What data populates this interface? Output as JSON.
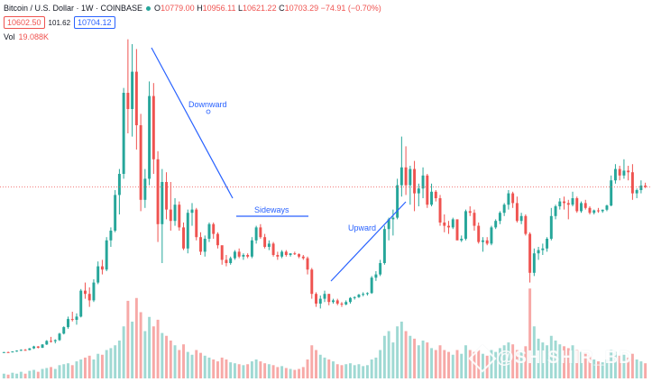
{
  "header": {
    "symbol": "Bitcoin / U.S. Dollar · 1W · COINBASE",
    "o_label": "O",
    "o_value": "10779.00",
    "h_label": "H",
    "h_value": "10956.11",
    "l_label": "L",
    "l_value": "10621.22",
    "c_label": "C",
    "c_value": "10703.29",
    "change": "−74.91 (−0.70%)"
  },
  "prices": {
    "sell": "10602.50",
    "spread": "101.62",
    "buy": "10704.12"
  },
  "volume": {
    "label": "Vol",
    "value": "19.088K"
  },
  "watermark": {
    "text": "@SHISHIR_BD"
  },
  "colors": {
    "up": "#26a69a",
    "down": "#ef5350",
    "up_vol": "#9fd9d3",
    "down_vol": "#f7a9a7",
    "annotation": "#2962ff",
    "price_line": "#ef5350"
  },
  "chart_data": {
    "type": "candlestick",
    "interval": "1W",
    "annotations": [
      "Downward",
      "Sideways",
      "Upward"
    ],
    "current_price": 10703.29,
    "series": [
      {
        "name": "price",
        "values": [
          [
            500,
            520,
            470,
            510
          ],
          [
            510,
            540,
            480,
            500
          ],
          [
            500,
            560,
            490,
            550
          ],
          [
            550,
            620,
            530,
            600
          ],
          [
            600,
            680,
            580,
            650
          ],
          [
            650,
            700,
            600,
            640
          ],
          [
            640,
            760,
            620,
            740
          ],
          [
            740,
            900,
            700,
            860
          ],
          [
            860,
            880,
            740,
            780
          ],
          [
            780,
            1000,
            760,
            980
          ],
          [
            980,
            1250,
            950,
            1200
          ],
          [
            1200,
            1450,
            1100,
            1180
          ],
          [
            1180,
            1300,
            1050,
            1250
          ],
          [
            1250,
            1700,
            1200,
            1650
          ],
          [
            1650,
            2100,
            1600,
            2050
          ],
          [
            2050,
            2700,
            1950,
            2550
          ],
          [
            2550,
            3000,
            2400,
            2500
          ],
          [
            2500,
            2900,
            2200,
            2700
          ],
          [
            2700,
            4400,
            2650,
            4300
          ],
          [
            4300,
            4800,
            3800,
            4100
          ],
          [
            4100,
            4500,
            3300,
            3700
          ],
          [
            3700,
            5000,
            3600,
            4800
          ],
          [
            4800,
            6100,
            4700,
            5800
          ],
          [
            5800,
            6200,
            5300,
            5600
          ],
          [
            5600,
            7600,
            5500,
            7400
          ],
          [
            7400,
            8200,
            7000,
            8000
          ],
          [
            8000,
            10500,
            7900,
            10200
          ],
          [
            10200,
            11800,
            9000,
            11500
          ],
          [
            11500,
            16800,
            11200,
            16500
          ],
          [
            16500,
            19800,
            14000,
            15500
          ],
          [
            15500,
            19500,
            13800,
            17800
          ],
          [
            17800,
            19200,
            13000,
            14500
          ],
          [
            14500,
            15200,
            9200,
            9900
          ],
          [
            9900,
            11800,
            9400,
            11200
          ],
          [
            11200,
            17200,
            10800,
            16300
          ],
          [
            16300,
            17100,
            11500,
            12400
          ],
          [
            12400,
            12900,
            7300,
            8400
          ],
          [
            8400,
            11800,
            6000,
            11000
          ],
          [
            11000,
            11600,
            8700,
            9300
          ],
          [
            9300,
            11000,
            8000,
            8600
          ],
          [
            8600,
            10000,
            8300,
            9600
          ],
          [
            9600,
            9800,
            8000,
            8200
          ],
          [
            8200,
            8500,
            6800,
            6900
          ],
          [
            6900,
            9300,
            6600,
            9100
          ],
          [
            9100,
            9700,
            8300,
            9300
          ],
          [
            9300,
            9400,
            7400,
            7600
          ],
          [
            7600,
            7900,
            6500,
            6700
          ],
          [
            6700,
            7700,
            6400,
            7500
          ],
          [
            7500,
            8500,
            7300,
            8400
          ],
          [
            8400,
            8500,
            7500,
            7800
          ],
          [
            7800,
            7900,
            6900,
            7100
          ],
          [
            7100,
            6900,
            5900,
            6200
          ],
          [
            6200,
            6500,
            5800,
            6000
          ],
          [
            6000,
            6400,
            5900,
            6300
          ],
          [
            6300,
            6800,
            6200,
            6700
          ],
          [
            6700,
            6900,
            6300,
            6400
          ],
          [
            6400,
            6600,
            6200,
            6500
          ],
          [
            6500,
            6600,
            6300,
            6400
          ],
          [
            6400,
            7600,
            6300,
            7400
          ],
          [
            7400,
            8300,
            7200,
            8200
          ],
          [
            8200,
            8400,
            7500,
            7600
          ],
          [
            7600,
            7800,
            6900,
            7000
          ],
          [
            7000,
            7400,
            6800,
            7200
          ],
          [
            7200,
            7300,
            6400,
            6500
          ],
          [
            6500,
            6700,
            6200,
            6400
          ],
          [
            6400,
            6800,
            6300,
            6700
          ],
          [
            6700,
            6800,
            6400,
            6500
          ],
          [
            6500,
            6600,
            6400,
            6600
          ],
          [
            6600,
            6700,
            6500,
            6550
          ],
          [
            6550,
            6600,
            6300,
            6400
          ],
          [
            6400,
            6500,
            6200,
            6300
          ],
          [
            6300,
            6400,
            5300,
            5600
          ],
          [
            5600,
            5700,
            3800,
            4100
          ],
          [
            4100,
            4200,
            3300,
            3500
          ],
          [
            3500,
            4000,
            3200,
            3800
          ],
          [
            3800,
            4300,
            3600,
            4100
          ],
          [
            4100,
            4100,
            3400,
            3600
          ],
          [
            3600,
            3800,
            3500,
            3700
          ],
          [
            3700,
            3800,
            3400,
            3500
          ],
          [
            3500,
            3600,
            3300,
            3450
          ],
          [
            3450,
            3700,
            3400,
            3600
          ],
          [
            3600,
            3900,
            3500,
            3850
          ],
          [
            3850,
            3950,
            3750,
            3900
          ],
          [
            3900,
            4100,
            3850,
            4050
          ],
          [
            4050,
            4200,
            3950,
            4100
          ],
          [
            4100,
            4200,
            4000,
            4150
          ],
          [
            4150,
            5200,
            4100,
            5100
          ],
          [
            5100,
            5500,
            4900,
            5300
          ],
          [
            5300,
            6200,
            5200,
            6000
          ],
          [
            6000,
            8300,
            5900,
            8100
          ],
          [
            8100,
            8800,
            7400,
            8700
          ],
          [
            8700,
            9300,
            7700,
            8800
          ],
          [
            8800,
            11200,
            8700,
            10800
          ],
          [
            10800,
            13800,
            10100,
            11900
          ],
          [
            11900,
            13200,
            10200,
            10800
          ],
          [
            10800,
            12000,
            9600,
            11800
          ],
          [
            11800,
            12300,
            9200,
            10300
          ],
          [
            10300,
            10900,
            9500,
            10600
          ],
          [
            10600,
            11900,
            10000,
            11400
          ],
          [
            11400,
            11500,
            9400,
            9600
          ],
          [
            9600,
            10900,
            9500,
            10400
          ],
          [
            10400,
            10500,
            9800,
            10000
          ],
          [
            10000,
            10200,
            8300,
            8500
          ],
          [
            8500,
            9000,
            7900,
            8300
          ],
          [
            8300,
            8600,
            7800,
            8200
          ],
          [
            8200,
            8800,
            8100,
            8700
          ],
          [
            8700,
            8500,
            7500,
            7400
          ],
          [
            7400,
            7700,
            7300,
            7500
          ],
          [
            7500,
            9300,
            7400,
            9200
          ],
          [
            9200,
            9500,
            8900,
            9100
          ],
          [
            9100,
            9300,
            8000,
            8300
          ],
          [
            8300,
            8500,
            7200,
            7300
          ],
          [
            7300,
            7600,
            6700,
            7400
          ],
          [
            7400,
            7600,
            7100,
            7200
          ],
          [
            7200,
            8300,
            7100,
            8200
          ],
          [
            8200,
            8700,
            8100,
            8600
          ],
          [
            8600,
            9200,
            8400,
            9100
          ],
          [
            9100,
            9700,
            8900,
            9600
          ],
          [
            9600,
            10500,
            9300,
            10300
          ],
          [
            10300,
            10400,
            9400,
            9700
          ],
          [
            9700,
            10100,
            8500,
            8600
          ],
          [
            8600,
            9100,
            8400,
            8900
          ],
          [
            8900,
            9000,
            7700,
            7800
          ],
          [
            7800,
            7900,
            4800,
            5400
          ],
          [
            5400,
            6900,
            5200,
            6600
          ],
          [
            6600,
            7000,
            6200,
            6800
          ],
          [
            6800,
            7200,
            6500,
            6900
          ],
          [
            6900,
            7600,
            6700,
            7500
          ],
          [
            7500,
            9400,
            7400,
            8900
          ],
          [
            8900,
            9600,
            8700,
            9500
          ],
          [
            9500,
            10000,
            9300,
            9800
          ],
          [
            9800,
            10100,
            9300,
            9700
          ],
          [
            9700,
            9900,
            8700,
            9600
          ],
          [
            9600,
            10400,
            9500,
            10000
          ],
          [
            10000,
            10100,
            9100,
            9200
          ],
          [
            9200,
            9800,
            9100,
            9700
          ],
          [
            9700,
            9900,
            9300,
            9400
          ],
          [
            9400,
            9500,
            9000,
            9100
          ],
          [
            9100,
            9300,
            9000,
            9250
          ],
          [
            9250,
            9400,
            9100,
            9200
          ],
          [
            9200,
            9300,
            9100,
            9290
          ],
          [
            9290,
            9600,
            9200,
            9550
          ],
          [
            9550,
            11400,
            9500,
            11100
          ],
          [
            11100,
            12100,
            10900,
            11800
          ],
          [
            11800,
            12000,
            11100,
            11400
          ],
          [
            11400,
            12400,
            11200,
            11700
          ],
          [
            11700,
            12000,
            11100,
            11600
          ],
          [
            11600,
            12100,
            9900,
            10300
          ],
          [
            10300,
            10600,
            10000,
            10500
          ],
          [
            10500,
            11100,
            10300,
            10779
          ],
          [
            10779,
            10956,
            10621,
            10703
          ]
        ]
      }
    ],
    "volume": [
      0.05,
      0.04,
      0.06,
      0.05,
      0.07,
      0.05,
      0.08,
      0.09,
      0.07,
      0.1,
      0.11,
      0.12,
      0.1,
      0.14,
      0.15,
      0.16,
      0.14,
      0.18,
      0.2,
      0.22,
      0.24,
      0.2,
      0.26,
      0.25,
      0.3,
      0.32,
      0.35,
      0.4,
      0.55,
      0.82,
      0.6,
      0.85,
      0.7,
      0.5,
      0.65,
      0.55,
      0.62,
      0.48,
      0.45,
      0.4,
      0.35,
      0.3,
      0.36,
      0.28,
      0.25,
      0.3,
      0.27,
      0.24,
      0.22,
      0.2,
      0.18,
      0.22,
      0.2,
      0.17,
      0.16,
      0.15,
      0.14,
      0.15,
      0.18,
      0.2,
      0.18,
      0.16,
      0.15,
      0.14,
      0.12,
      0.13,
      0.11,
      0.1,
      0.09,
      0.1,
      0.12,
      0.2,
      0.35,
      0.3,
      0.25,
      0.22,
      0.2,
      0.18,
      0.15,
      0.14,
      0.15,
      0.16,
      0.14,
      0.15,
      0.13,
      0.14,
      0.2,
      0.22,
      0.3,
      0.45,
      0.5,
      0.38,
      0.55,
      0.6,
      0.5,
      0.45,
      0.42,
      0.35,
      0.4,
      0.38,
      0.32,
      0.3,
      0.35,
      0.3,
      0.28,
      0.25,
      0.3,
      0.26,
      0.35,
      0.3,
      0.28,
      0.3,
      0.26,
      0.24,
      0.3,
      0.28,
      0.32,
      0.35,
      0.38,
      0.36,
      0.3,
      0.28,
      0.34,
      0.95,
      0.55,
      0.42,
      0.38,
      0.35,
      0.45,
      0.4,
      0.36,
      0.34,
      0.32,
      0.35,
      0.3,
      0.28,
      0.26,
      0.24,
      0.2,
      0.18,
      0.17,
      0.2,
      0.3,
      0.28,
      0.24,
      0.25,
      0.22,
      0.26,
      0.2,
      0.18,
      0.16
    ]
  }
}
